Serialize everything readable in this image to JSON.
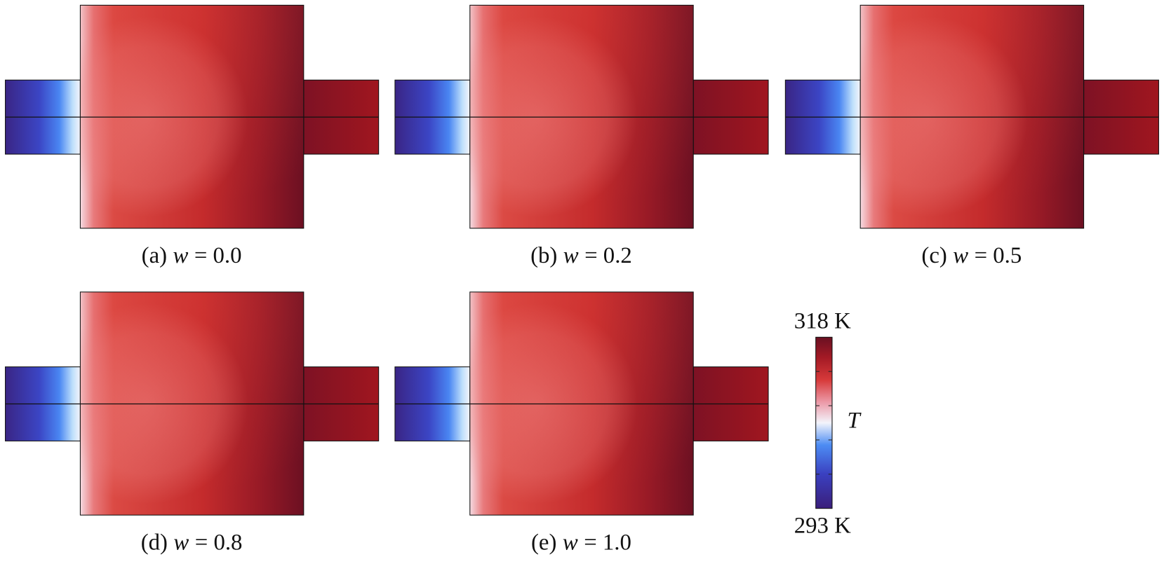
{
  "panels": [
    {
      "label": "(a)",
      "variable": "w",
      "value": "= 0.0"
    },
    {
      "label": "(b)",
      "variable": "w",
      "value": "= 0.2"
    },
    {
      "label": "(c)",
      "variable": "w",
      "value": "= 0.5"
    },
    {
      "label": "(d)",
      "variable": "w",
      "value": "= 0.8"
    },
    {
      "label": "(e)",
      "variable": "w",
      "value": "= 1.0"
    }
  ],
  "colorbar": {
    "max": "318 K",
    "min": "293 K",
    "variable": "T"
  }
}
